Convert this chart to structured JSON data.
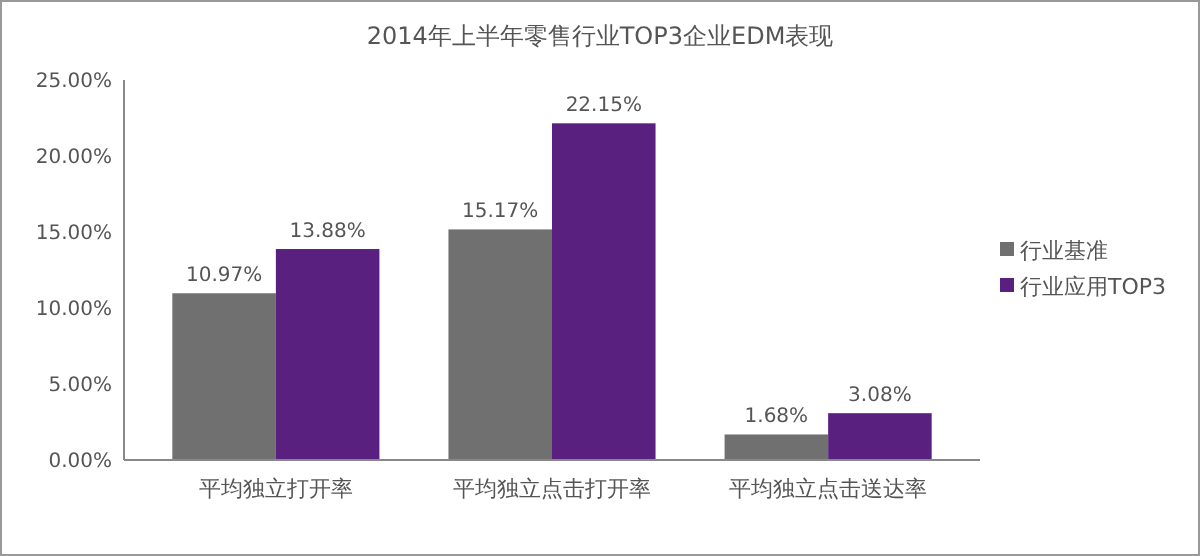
{
  "chart_data": {
    "type": "bar",
    "title": "2014年上半年零售行业TOP3企业EDM表现",
    "categories": [
      "平均独立打开率",
      "平均独立点击打开率",
      "平均独立点击送达率"
    ],
    "series": [
      {
        "name": "行业基准",
        "color": "#707070",
        "values": [
          10.97,
          15.17,
          1.68
        ],
        "value_labels": [
          "10.97%",
          "15.17%",
          "1.68%"
        ]
      },
      {
        "name": "行业应用TOP3",
        "color": "#5a2080",
        "values": [
          13.88,
          22.15,
          3.08
        ],
        "value_labels": [
          "13.88%",
          "22.15%",
          "3.08%"
        ]
      }
    ],
    "ylim": [
      0,
      25
    ],
    "yticks": [
      {
        "value": 0,
        "label": "0.00%"
      },
      {
        "value": 5,
        "label": "5.00%"
      },
      {
        "value": 10,
        "label": "10.00%"
      },
      {
        "value": 15,
        "label": "15.00%"
      },
      {
        "value": 20,
        "label": "20.00%"
      },
      {
        "value": 25,
        "label": "25.00%"
      }
    ],
    "grid": false,
    "legend": "right"
  }
}
